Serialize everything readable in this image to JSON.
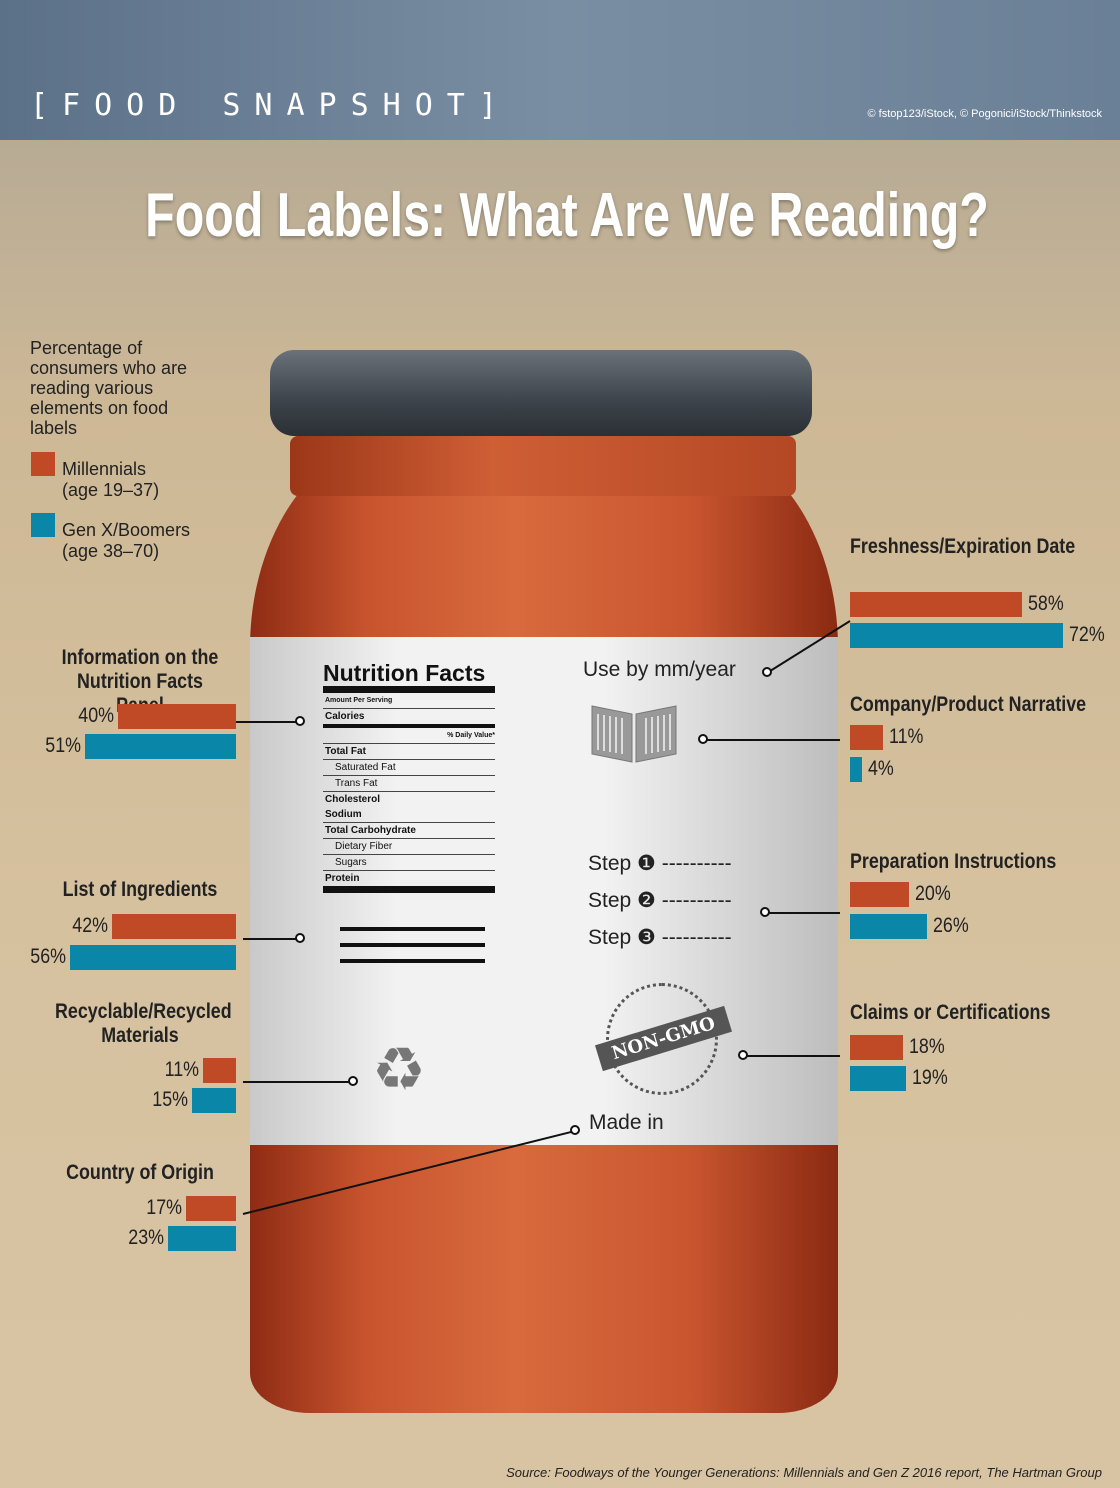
{
  "header": {
    "kicker": "[FOOD SNAPSHOT]",
    "credit": "© fstop123/iStock, © Pogonici/iStock/Thinkstock",
    "title": "Food Labels: What Are We Reading?"
  },
  "legend": {
    "description": "Percentage of consumers who are reading various elements on food labels",
    "items": [
      {
        "label": "Millennials",
        "sub": "(age 19–37)",
        "color": "#c04a26"
      },
      {
        "label": "Gen X/Boomers",
        "sub": "(age 38–70)",
        "color": "#0a86a8"
      }
    ]
  },
  "jar_label": {
    "nutrition": {
      "title": "Nutrition Facts",
      "rows": [
        "Amount Per Serving",
        "Calories",
        "% Daily Value*",
        "Total Fat",
        "Saturated Fat",
        "Trans Fat",
        "Cholesterol",
        "Sodium",
        "Total Carbohydrate",
        "Dietary Fiber",
        "Sugars",
        "Protein"
      ]
    },
    "use_by": "Use by mm/year",
    "steps": [
      "Step ❶ ----------",
      "Step ❷ ----------",
      "Step ❸ ----------"
    ],
    "badge": "NON-GMO",
    "made_in": "Made in"
  },
  "chart_data": {
    "type": "bar",
    "orientation": "horizontal",
    "series": [
      {
        "name": "Millennials",
        "color": "#c04a26"
      },
      {
        "name": "Gen X/Boomers",
        "color": "#0a86a8"
      }
    ],
    "categories": [
      {
        "label": "Information on the Nutrition Facts Panel",
        "millennials": 40,
        "genx": 51,
        "m_text": "40%",
        "g_text": "51%"
      },
      {
        "label": "List of Ingredients",
        "millennials": 42,
        "genx": 56,
        "m_text": "42%",
        "g_text": "56%"
      },
      {
        "label": "Recyclable/Recycled Materials",
        "millennials": 11,
        "genx": 15,
        "m_text": "11%",
        "g_text": "15%"
      },
      {
        "label": "Country of Origin",
        "millennials": 17,
        "genx": 23,
        "m_text": "17%",
        "g_text": "23%"
      },
      {
        "label": "Freshness/Expiration Date",
        "millennials": 58,
        "genx": 72,
        "m_text": "58%",
        "g_text": "72%"
      },
      {
        "label": "Company/Product Narrative",
        "millennials": 11,
        "genx": 4,
        "m_text": "11%",
        "g_text": "4%"
      },
      {
        "label": "Preparation Instructions",
        "millennials": 20,
        "genx": 26,
        "m_text": "20%",
        "g_text": "26%"
      },
      {
        "label": "Claims or Certifications",
        "millennials": 18,
        "genx": 19,
        "m_text": "18%",
        "g_text": "19%"
      }
    ]
  },
  "source": "Source: Foodways of the Younger Generations: Millennials and Gen Z 2016 report, The Hartman Group"
}
